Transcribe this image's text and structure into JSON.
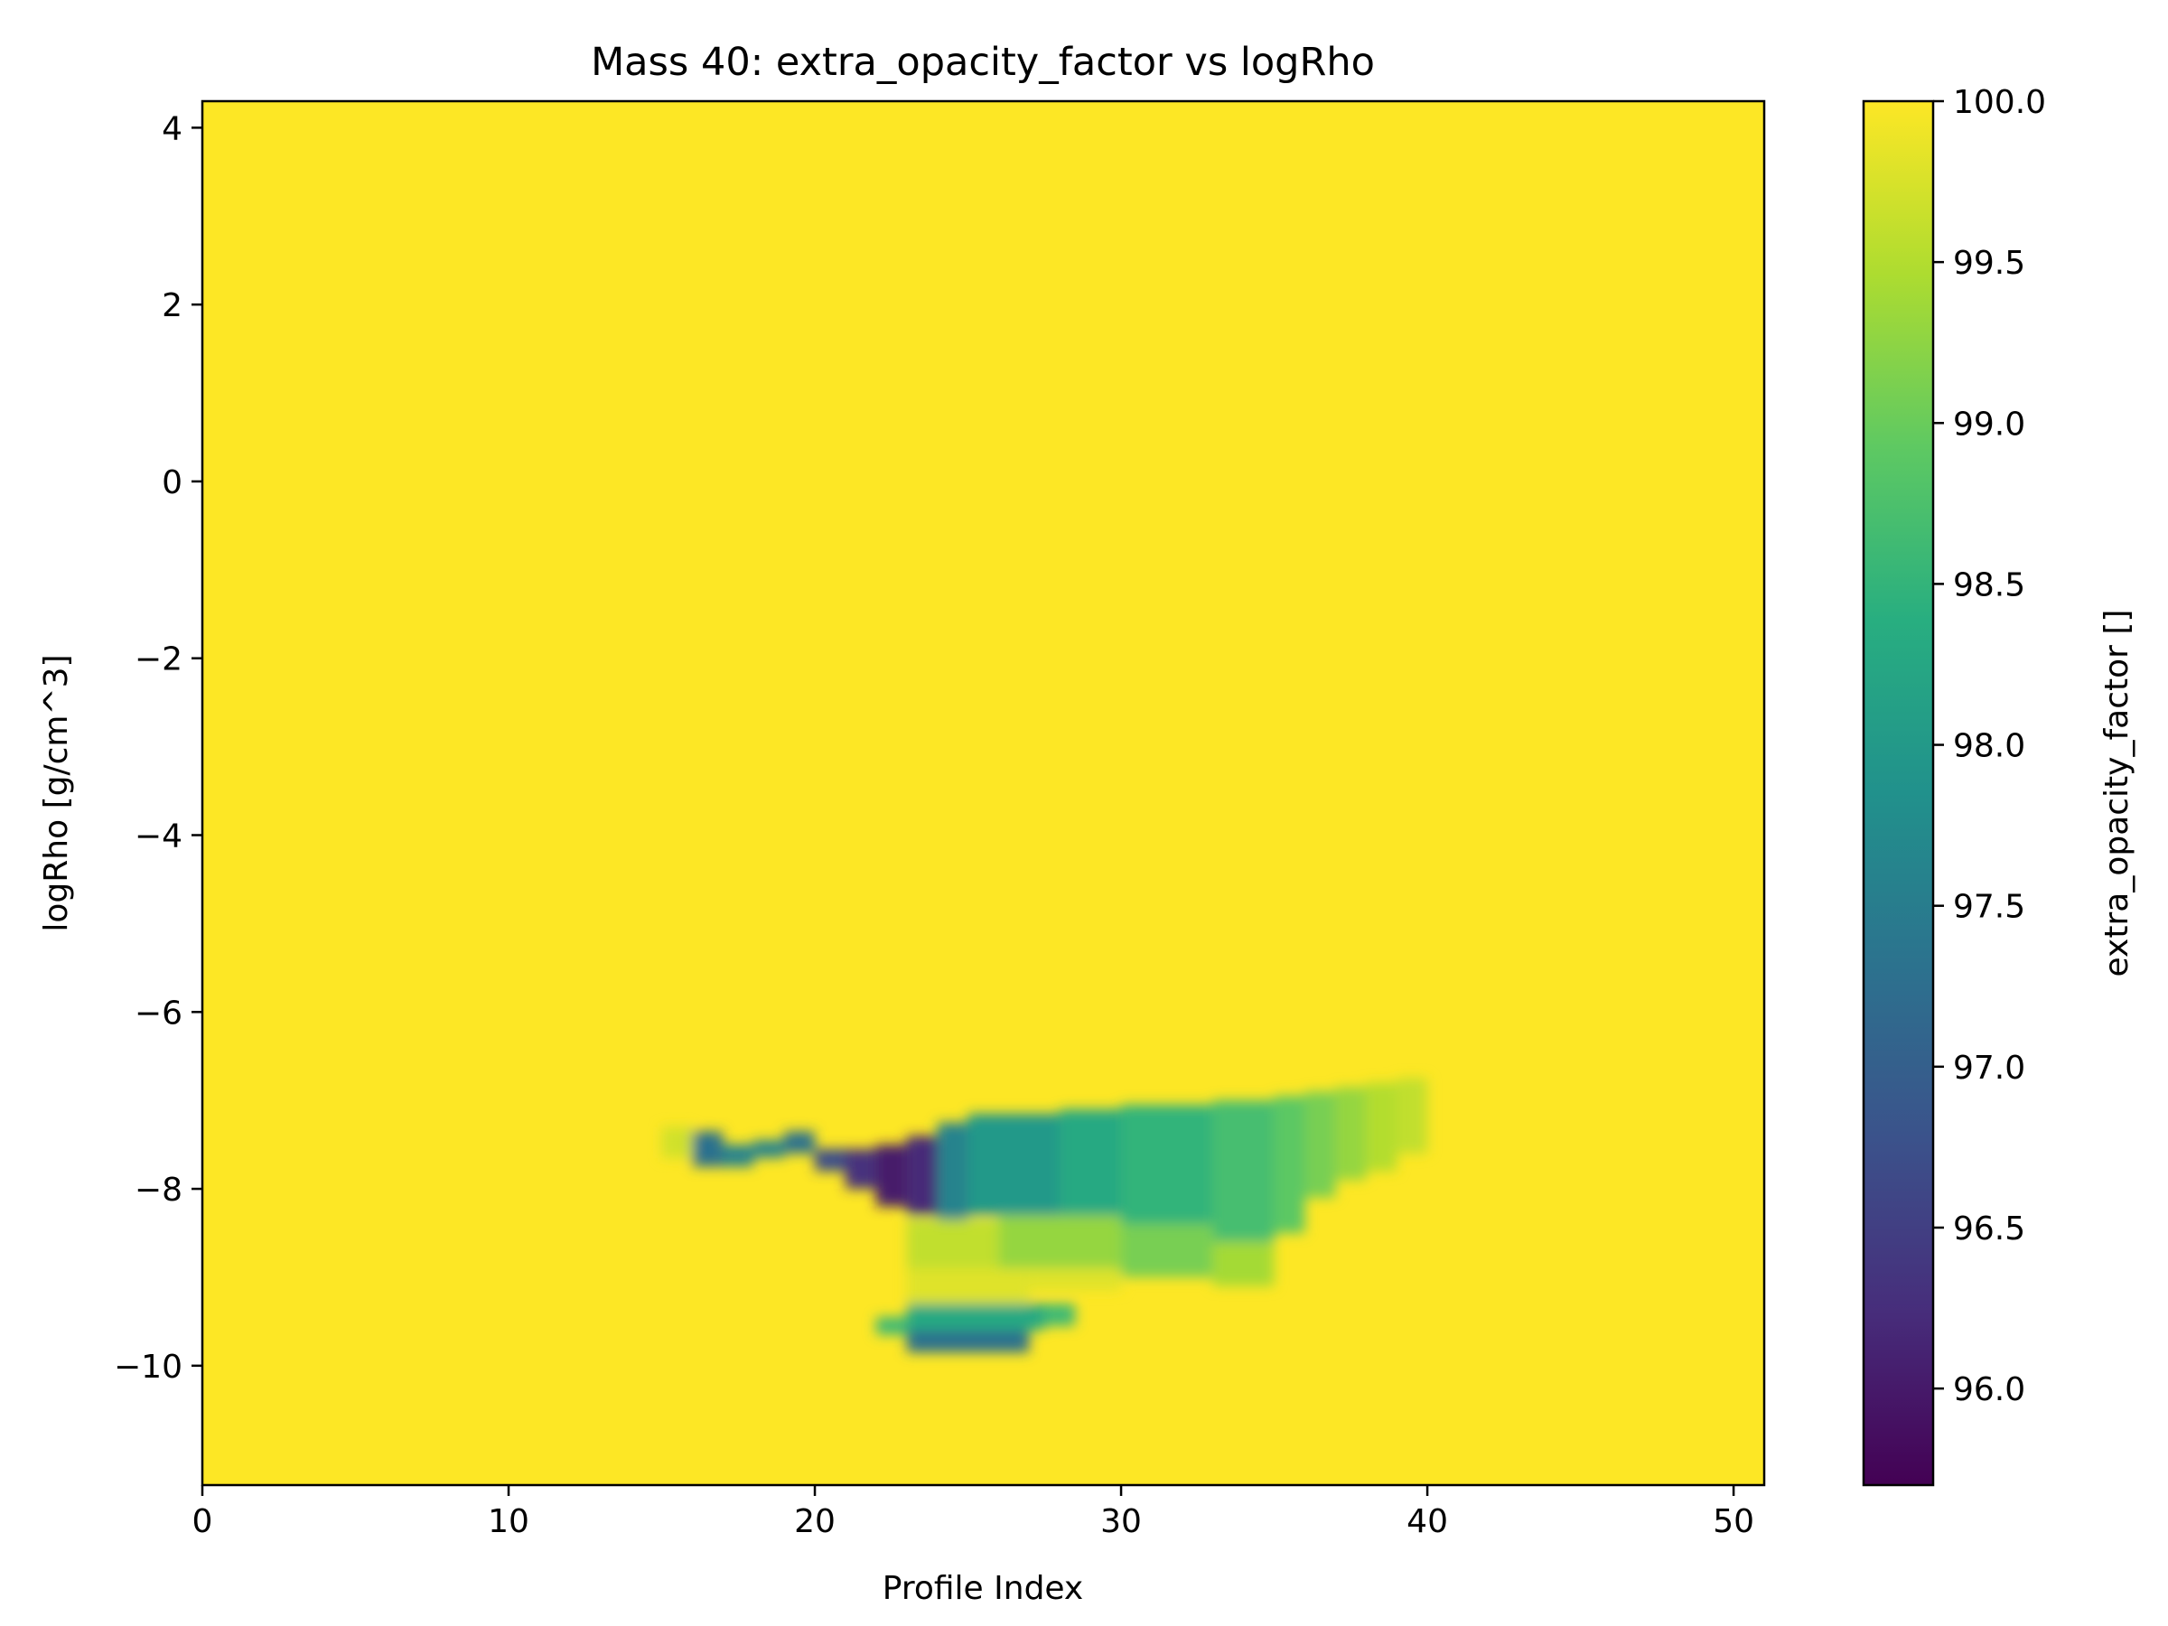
{
  "chart_data": {
    "type": "heatmap",
    "title": "Mass 40: extra_opacity_factor vs logRho",
    "xlabel": "Profile Index",
    "ylabel": "logRho [g/cm^3]",
    "xlim": [
      0,
      51
    ],
    "ylim": [
      -11.35,
      4.3
    ],
    "xticks": [
      0,
      10,
      20,
      30,
      40,
      50
    ],
    "yticks": [
      4,
      2,
      0,
      -2,
      -4,
      -6,
      -8,
      -10
    ],
    "colorbar": {
      "label": "extra_opacity_factor []",
      "colormap": "viridis",
      "range": [
        95.7,
        100.0
      ],
      "ticks": [
        100.0,
        99.5,
        99.0,
        98.5,
        98.0,
        97.5,
        97.0,
        96.5,
        96.0
      ]
    },
    "background_value": 100.0,
    "grid": false,
    "regions": [
      {
        "x0": 15.0,
        "x1": 16.0,
        "y0": -7.65,
        "y1": -7.3,
        "value": 99.7
      },
      {
        "x0": 16.0,
        "x1": 17.0,
        "y0": -7.75,
        "y1": -7.35,
        "value": 97.3
      },
      {
        "x0": 17.0,
        "x1": 18.0,
        "y0": -7.75,
        "y1": -7.5,
        "value": 97.6
      },
      {
        "x0": 18.0,
        "x1": 19.0,
        "y0": -7.65,
        "y1": -7.45,
        "value": 97.6
      },
      {
        "x0": 19.0,
        "x1": 20.0,
        "y0": -7.6,
        "y1": -7.35,
        "value": 97.3
      },
      {
        "x0": 20.0,
        "x1": 21.0,
        "y0": -7.8,
        "y1": -7.55,
        "value": 96.7
      },
      {
        "x0": 21.0,
        "x1": 22.0,
        "y0": -8.0,
        "y1": -7.55,
        "value": 96.3
      },
      {
        "x0": 22.0,
        "x1": 23.0,
        "y0": -8.2,
        "y1": -7.5,
        "value": 96.0
      },
      {
        "x0": 23.0,
        "x1": 24.0,
        "y0": -8.3,
        "y1": -7.4,
        "value": 96.2
      },
      {
        "x0": 24.0,
        "x1": 25.0,
        "y0": -8.35,
        "y1": -7.25,
        "value": 97.6
      },
      {
        "x0": 25.0,
        "x1": 28.0,
        "y0": -8.3,
        "y1": -7.15,
        "value": 98.0
      },
      {
        "x0": 28.0,
        "x1": 30.0,
        "y0": -8.3,
        "y1": -7.1,
        "value": 98.3
      },
      {
        "x0": 30.0,
        "x1": 33.0,
        "y0": -8.4,
        "y1": -7.05,
        "value": 98.5
      },
      {
        "x0": 33.0,
        "x1": 35.0,
        "y0": -8.6,
        "y1": -7.0,
        "value": 98.7
      },
      {
        "x0": 35.0,
        "x1": 36.0,
        "y0": -8.5,
        "y1": -6.95,
        "value": 98.9
      },
      {
        "x0": 36.0,
        "x1": 37.0,
        "y0": -8.1,
        "y1": -6.9,
        "value": 99.1
      },
      {
        "x0": 37.0,
        "x1": 38.0,
        "y0": -7.9,
        "y1": -6.85,
        "value": 99.3
      },
      {
        "x0": 38.0,
        "x1": 39.0,
        "y0": -7.8,
        "y1": -6.8,
        "value": 99.5
      },
      {
        "x0": 39.0,
        "x1": 40.0,
        "y0": -7.6,
        "y1": -6.75,
        "value": 99.6
      },
      {
        "x0": 23.0,
        "x1": 26.0,
        "y0": -8.9,
        "y1": -8.35,
        "value": 99.6
      },
      {
        "x0": 26.0,
        "x1": 30.0,
        "y0": -8.9,
        "y1": -8.3,
        "value": 99.3
      },
      {
        "x0": 30.0,
        "x1": 33.0,
        "y0": -9.0,
        "y1": -8.4,
        "value": 99.1
      },
      {
        "x0": 33.0,
        "x1": 35.0,
        "y0": -9.1,
        "y1": -8.6,
        "value": 99.4
      },
      {
        "x0": 23.0,
        "x1": 27.0,
        "y0": -9.4,
        "y1": -8.9,
        "value": 99.8
      },
      {
        "x0": 27.0,
        "x1": 30.0,
        "y0": -9.15,
        "y1": -8.9,
        "value": 99.8
      },
      {
        "x0": 22.0,
        "x1": 23.0,
        "y0": -9.65,
        "y1": -9.45,
        "value": 98.6
      },
      {
        "x0": 23.0,
        "x1": 27.5,
        "y0": -9.6,
        "y1": -9.3,
        "value": 98.3
      },
      {
        "x0": 27.5,
        "x1": 28.5,
        "y0": -9.55,
        "y1": -9.3,
        "value": 98.6
      },
      {
        "x0": 23.0,
        "x1": 27.0,
        "y0": -9.85,
        "y1": -9.6,
        "value": 97.3
      }
    ]
  }
}
